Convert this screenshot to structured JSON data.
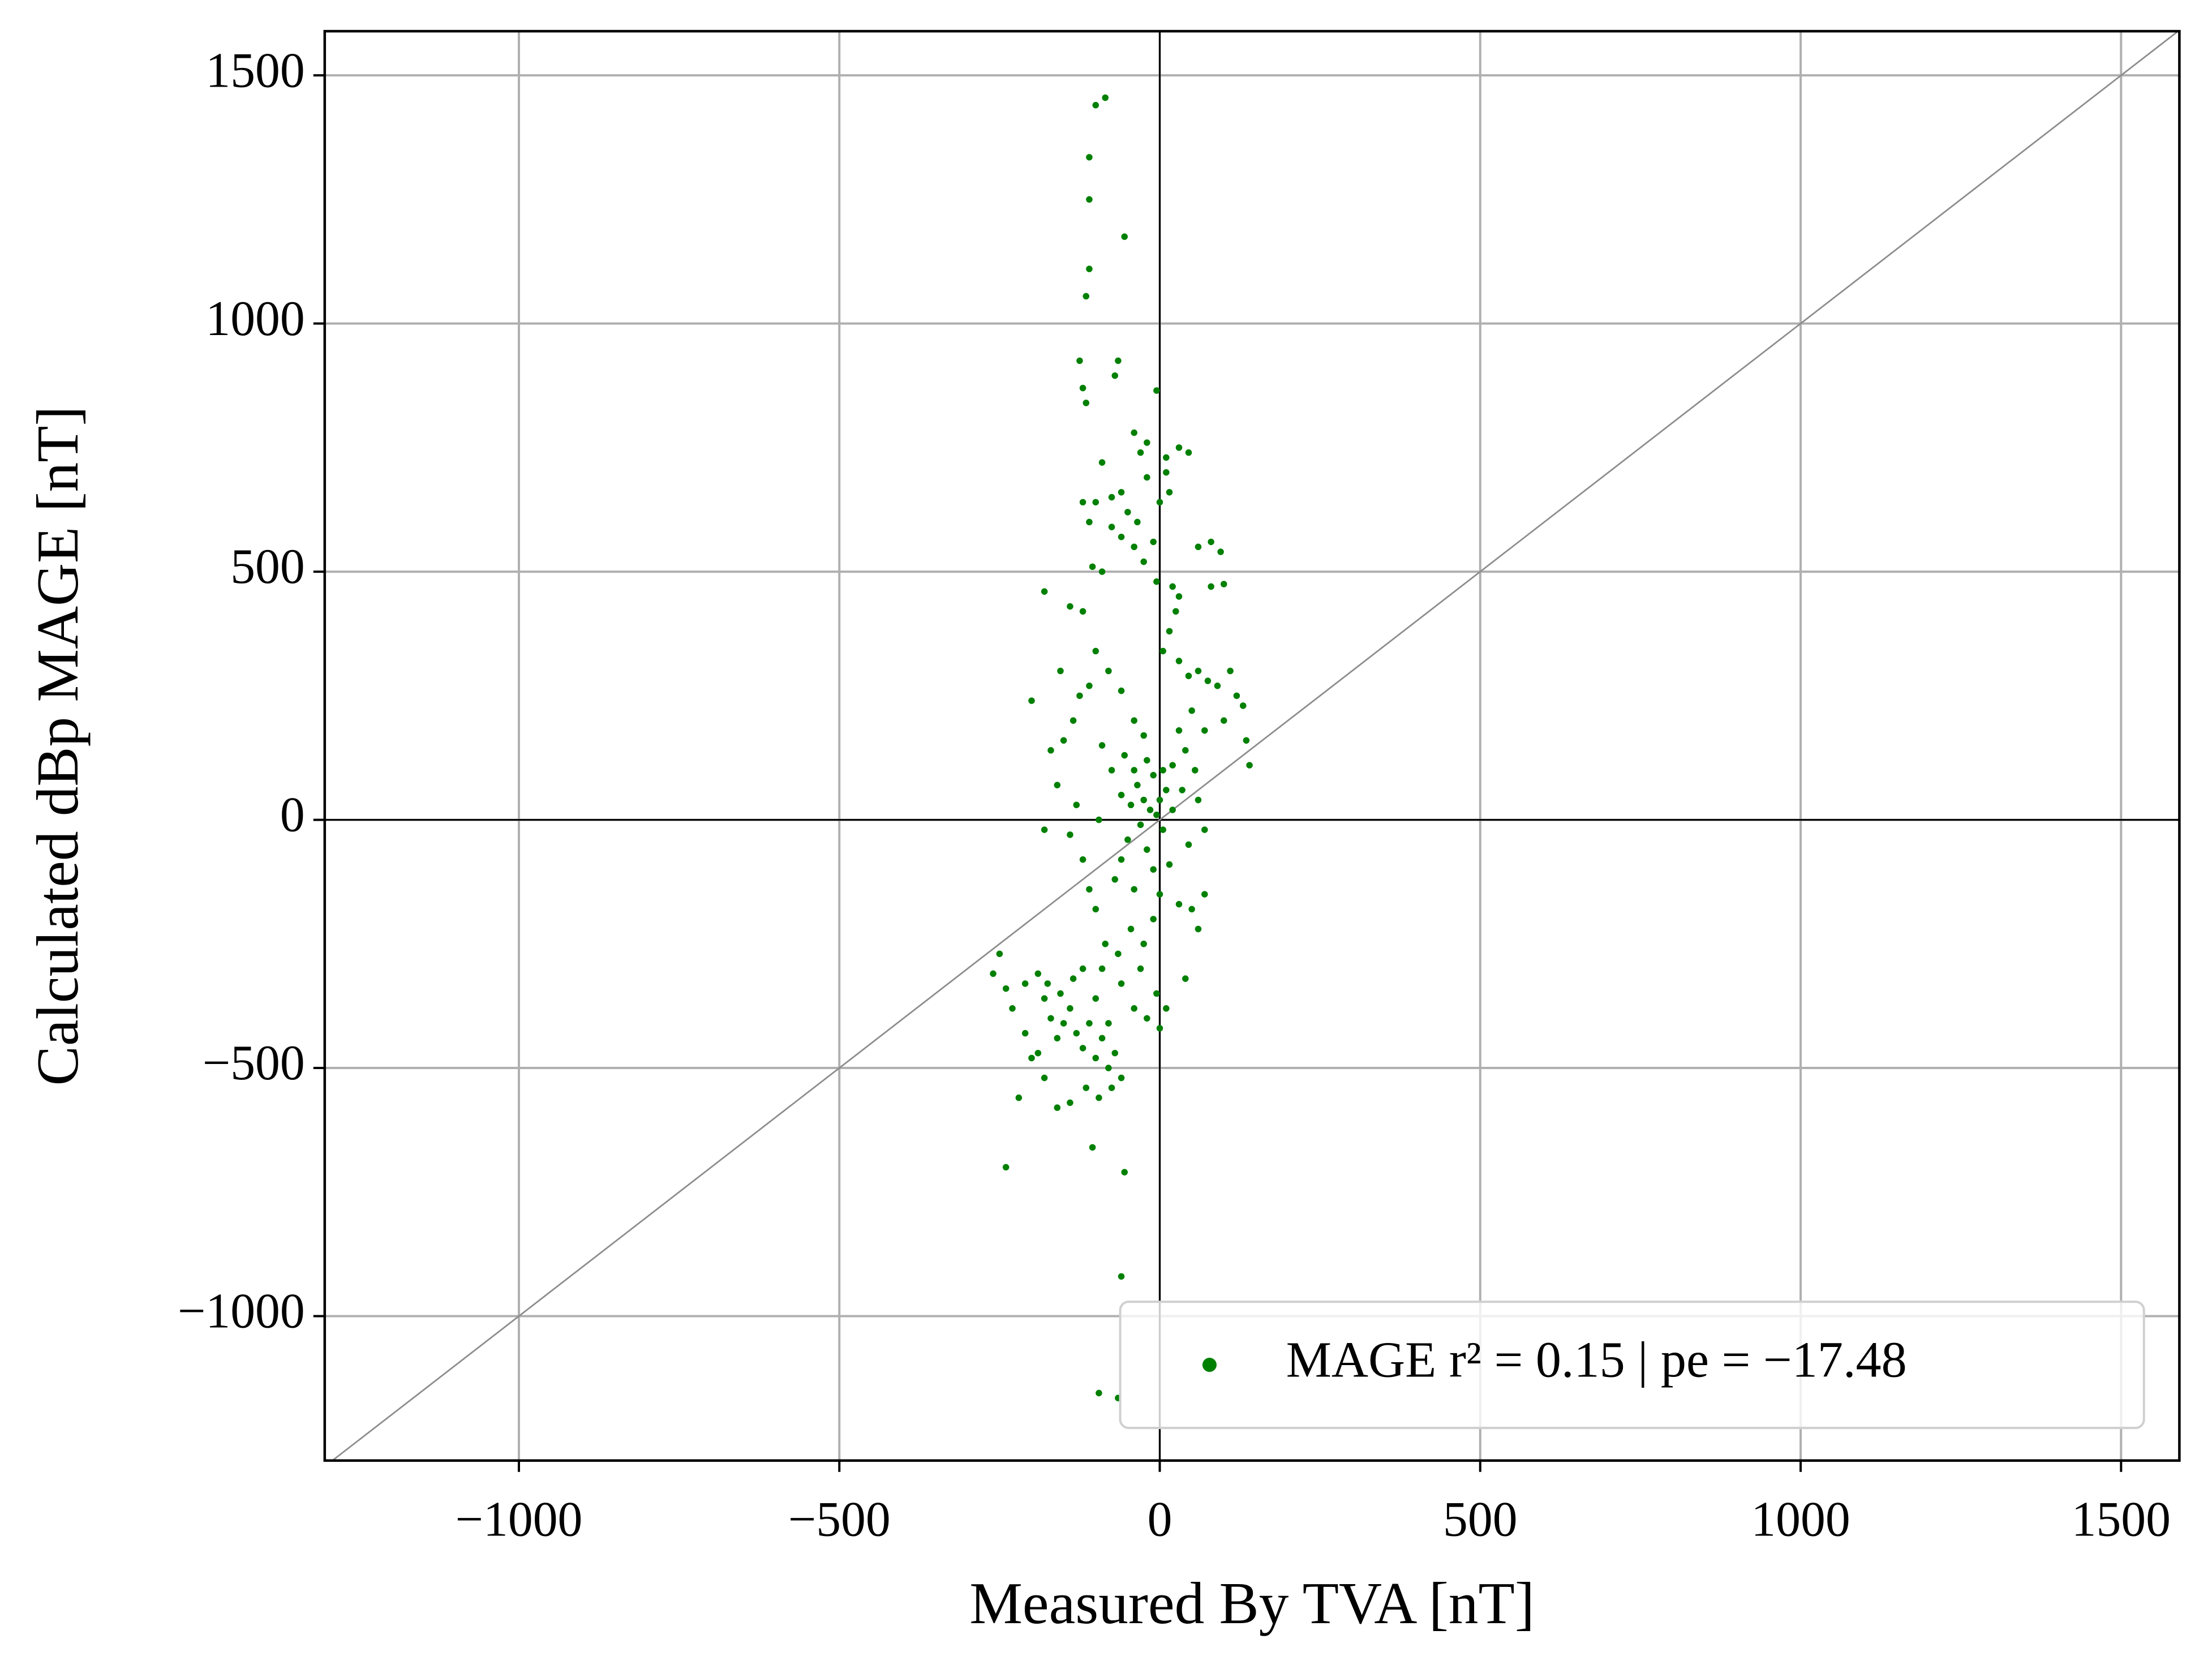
{
  "chart_data": {
    "type": "scatter",
    "x_label": "Measured By TVA [nT]",
    "y_label": "Calculated dBp MAGE [nT]",
    "xlim": [
      -1303,
      1591
    ],
    "ylim": [
      -1291,
      1589
    ],
    "xticks": [
      {
        "value": -1000,
        "label": "−1000"
      },
      {
        "value": -500,
        "label": "−500"
      },
      0,
      500,
      1000,
      1500
    ],
    "yticks": [
      {
        "value": -1000,
        "label": "−1000"
      },
      {
        "value": -500,
        "label": "−500"
      },
      0,
      500,
      1000,
      1500
    ],
    "grid": true,
    "legend_loc": "lower right",
    "series": [
      {
        "name": "MAGE r² = 0.15 | pe = −17.48",
        "color": "#008000",
        "x": [
          -100,
          -85,
          -110,
          -110,
          -55,
          -110,
          -115,
          -125,
          -65,
          -120,
          -115,
          -70,
          -5,
          -20,
          -40,
          -30,
          10,
          30,
          45,
          -90,
          -75,
          -120,
          -100,
          -60,
          -50,
          -35,
          -20,
          0,
          10,
          15,
          -10,
          -40,
          -60,
          -75,
          -25,
          -5,
          20,
          30,
          60,
          80,
          95,
          80,
          100,
          -110,
          -105,
          -180,
          -140,
          -120,
          -90,
          25,
          15,
          5,
          30,
          45,
          60,
          75,
          90,
          110,
          120,
          130,
          140,
          135,
          100,
          70,
          50,
          30,
          40,
          20,
          10,
          0,
          -10,
          -20,
          -35,
          -45,
          -60,
          -75,
          -90,
          -110,
          -125,
          -135,
          -150,
          -170,
          -200,
          -155,
          -100,
          -80,
          -60,
          -40,
          -25,
          -15,
          -30,
          -50,
          -60,
          -70,
          -40,
          -20,
          5,
          20,
          35,
          55,
          70,
          60,
          45,
          15,
          0,
          -10,
          -25,
          -45,
          -65,
          -85,
          -100,
          -90,
          -60,
          -30,
          -5,
          10,
          0,
          -20,
          -40,
          30,
          50,
          60,
          70,
          40,
          -110,
          -120,
          -95,
          -130,
          -160,
          -180,
          -140,
          -10,
          -5,
          -25,
          5,
          -40,
          -55,
          -250,
          -260,
          -240,
          -230,
          -210,
          -190,
          -180,
          -170,
          -160,
          -150,
          -140,
          -130,
          -120,
          -110,
          -100,
          -90,
          -80,
          -70,
          -60,
          -75,
          -95,
          -115,
          -140,
          -160,
          -180,
          -200,
          -210,
          -220,
          -190,
          -175,
          -155,
          -135,
          -120,
          -100,
          -80,
          -240,
          -105,
          -55,
          -60,
          -95,
          -65
        ],
        "values": [
          1440,
          1455,
          1335,
          1250,
          1175,
          1110,
          1055,
          925,
          925,
          870,
          840,
          895,
          865,
          760,
          780,
          740,
          730,
          750,
          740,
          720,
          650,
          640,
          640,
          660,
          620,
          600,
          690,
          640,
          700,
          660,
          560,
          550,
          570,
          590,
          520,
          480,
          470,
          450,
          550,
          560,
          540,
          470,
          475,
          600,
          510,
          460,
          430,
          420,
          500,
          420,
          380,
          340,
          320,
          290,
          300,
          280,
          270,
          300,
          250,
          230,
          110,
          160,
          200,
          180,
          220,
          180,
          140,
          110,
          60,
          40,
          90,
          120,
          70,
          30,
          50,
          100,
          150,
          270,
          250,
          200,
          160,
          140,
          240,
          300,
          340,
          300,
          260,
          200,
          170,
          20,
          -10,
          -40,
          -80,
          -120,
          -140,
          -60,
          -20,
          20,
          60,
          100,
          -20,
          40,
          -50,
          -90,
          -150,
          -200,
          -250,
          -220,
          -270,
          -250,
          -180,
          -300,
          -330,
          -300,
          -350,
          -380,
          -420,
          -400,
          -380,
          -170,
          -180,
          -220,
          -150,
          -320,
          -140,
          -80,
          0,
          30,
          70,
          -20,
          -30,
          -100,
          10,
          40,
          100,
          100,
          130,
          -270,
          -310,
          -340,
          -380,
          -330,
          -310,
          -360,
          -400,
          -440,
          -410,
          -380,
          -430,
          -460,
          -410,
          -480,
          -440,
          -500,
          -470,
          -520,
          -540,
          -560,
          -540,
          -570,
          -580,
          -520,
          -480,
          -430,
          -560,
          -470,
          -330,
          -350,
          -320,
          -300,
          -360,
          -410,
          -700,
          -660,
          -710,
          -920,
          -1155,
          -1165
        ]
      }
    ]
  }
}
